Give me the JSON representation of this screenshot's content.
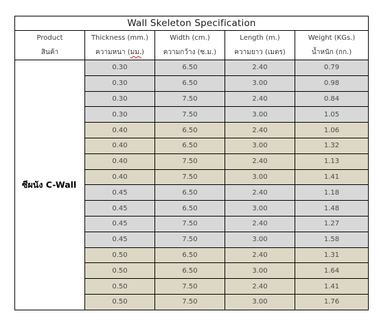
{
  "title": "Wall Skeleton Specification",
  "columns": [
    {
      "en": "Product",
      "th": "สินค้า",
      "th_main": "สินค้า",
      "th_flag": "",
      "th_tail": ""
    },
    {
      "en": "Thickness (mm.)",
      "th": "ความหนา (มม.)",
      "th_main": "ความหนา (",
      "th_flag": "มม.",
      "th_tail": ")"
    },
    {
      "en": "Width (cm.)",
      "th": "ความกว้าง (ซ.ม.)",
      "th_main": "ความกว้าง (ซ.ม.)",
      "th_flag": "",
      "th_tail": ""
    },
    {
      "en": "Length (m.)",
      "th": "ความยาว (เมตร)",
      "th_main": "ความยาว (เมตร)",
      "th_flag": "",
      "th_tail": ""
    },
    {
      "en": "Weight (KGs.)",
      "th": "น้ำหนัก (กก.)",
      "th_main": "น้ำหนัก (กก.)",
      "th_flag": "",
      "th_tail": ""
    }
  ],
  "product": "ซีผนัง C-Wall",
  "colors": {
    "group_a_fill": "#d8d8d8",
    "group_b_fill": "#dcd8c5",
    "border": "#000000",
    "spellcheck_underline": "#d02020"
  },
  "rows": [
    {
      "thickness": "0.30",
      "width": "6.50",
      "length": "2.40",
      "weight": "0.79",
      "group": "a"
    },
    {
      "thickness": "0.30",
      "width": "6.50",
      "length": "3.00",
      "weight": "0.98",
      "group": "a"
    },
    {
      "thickness": "0.30",
      "width": "7.50",
      "length": "2.40",
      "weight": "0.84",
      "group": "a"
    },
    {
      "thickness": "0.30",
      "width": "7.50",
      "length": "3.00",
      "weight": "1.05",
      "group": "a"
    },
    {
      "thickness": "0.40",
      "width": "6.50",
      "length": "2.40",
      "weight": "1.06",
      "group": "b"
    },
    {
      "thickness": "0.40",
      "width": "6.50",
      "length": "3.00",
      "weight": "1.32",
      "group": "b"
    },
    {
      "thickness": "0.40",
      "width": "7.50",
      "length": "2.40",
      "weight": "1.13",
      "group": "b"
    },
    {
      "thickness": "0.40",
      "width": "7.50",
      "length": "3.00",
      "weight": "1.41",
      "group": "b"
    },
    {
      "thickness": "0.45",
      "width": "6.50",
      "length": "2.40",
      "weight": "1.18",
      "group": "a"
    },
    {
      "thickness": "0.45",
      "width": "6.50",
      "length": "3.00",
      "weight": "1.48",
      "group": "a"
    },
    {
      "thickness": "0.45",
      "width": "7.50",
      "length": "2.40",
      "weight": "1.27",
      "group": "a"
    },
    {
      "thickness": "0.45",
      "width": "7.50",
      "length": "3.00",
      "weight": "1.58",
      "group": "a"
    },
    {
      "thickness": "0.50",
      "width": "6.50",
      "length": "2.40",
      "weight": "1.31",
      "group": "b"
    },
    {
      "thickness": "0.50",
      "width": "6.50",
      "length": "3.00",
      "weight": "1.64",
      "group": "b"
    },
    {
      "thickness": "0.50",
      "width": "7.50",
      "length": "2.40",
      "weight": "1.41",
      "group": "b"
    },
    {
      "thickness": "0.50",
      "width": "7.50",
      "length": "3.00",
      "weight": "1.76",
      "group": "b"
    }
  ]
}
